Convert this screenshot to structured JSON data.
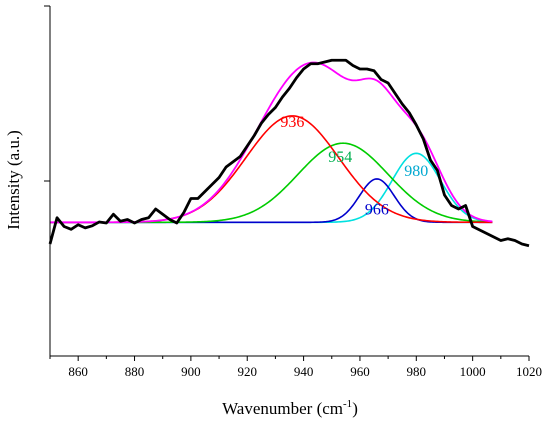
{
  "chart_data": {
    "type": "line",
    "xlabel": "Wavenumber (cm",
    "xlabel_sup": "-1",
    "xlabel_close": ")",
    "ylabel": "Intensity (a.u.)",
    "xlim": [
      850,
      1020
    ],
    "ylim": [
      0,
      1
    ],
    "grid": false,
    "x_ticks": [
      860,
      880,
      900,
      920,
      940,
      960,
      980,
      1000,
      1020
    ],
    "y_ticks_shown_without_labels": true,
    "peak_labels": [
      {
        "text": "936",
        "x": 936,
        "y": 0.655,
        "color": "#ff0000"
      },
      {
        "text": "954",
        "x": 953,
        "y": 0.555,
        "color": "#00b050"
      },
      {
        "text": "966",
        "x": 966,
        "y": 0.405,
        "color": "#0000cc"
      },
      {
        "text": "980",
        "x": 980,
        "y": 0.515,
        "color": "#00a8d0"
      }
    ],
    "series": [
      {
        "role": "experimental",
        "color": "#000000",
        "x": [
          850,
          852.5,
          855,
          857.5,
          860,
          862.5,
          865,
          867.5,
          870,
          872.5,
          875,
          877.5,
          880,
          882.5,
          885,
          887.5,
          890,
          892.5,
          895,
          897.5,
          900,
          902.5,
          905,
          907.5,
          910,
          912.5,
          915,
          917.5,
          920,
          922.5,
          925,
          927.5,
          930,
          932.5,
          935,
          937.5,
          940,
          942.5,
          945,
          947.5,
          950,
          952.5,
          955,
          957.5,
          960,
          962.5,
          965,
          967.5,
          970,
          972.5,
          975,
          977.5,
          980,
          982.5,
          985,
          987.5,
          990,
          992.5,
          995,
          997.5,
          1000,
          1002.5,
          1005,
          1007.5,
          1010,
          1012.5,
          1015,
          1017.5,
          1020
        ],
        "y": [
          0.32,
          0.395,
          0.37,
          0.362,
          0.375,
          0.366,
          0.372,
          0.383,
          0.38,
          0.405,
          0.385,
          0.39,
          0.38,
          0.39,
          0.395,
          0.42,
          0.405,
          0.39,
          0.38,
          0.41,
          0.45,
          0.45,
          0.47,
          0.49,
          0.51,
          0.54,
          0.555,
          0.57,
          0.6,
          0.63,
          0.665,
          0.69,
          0.71,
          0.74,
          0.765,
          0.795,
          0.82,
          0.835,
          0.835,
          0.84,
          0.845,
          0.845,
          0.845,
          0.83,
          0.82,
          0.82,
          0.815,
          0.79,
          0.78,
          0.75,
          0.72,
          0.695,
          0.66,
          0.62,
          0.56,
          0.53,
          0.46,
          0.43,
          0.42,
          0.43,
          0.37,
          0.36,
          0.35,
          0.34,
          0.33,
          0.335,
          0.33,
          0.32,
          0.315
        ]
      },
      {
        "role": "fit-sum",
        "color": "#ff00ff"
      },
      {
        "role": "component",
        "label": "936",
        "center": 936,
        "color": "#ff0000"
      },
      {
        "role": "component",
        "label": "954",
        "center": 954,
        "color": "#00cc00"
      },
      {
        "role": "component",
        "label": "966",
        "center": 966,
        "color": "#0000cc"
      },
      {
        "role": "component",
        "label": "980",
        "center": 980,
        "color": "#00e0e0"
      }
    ]
  }
}
